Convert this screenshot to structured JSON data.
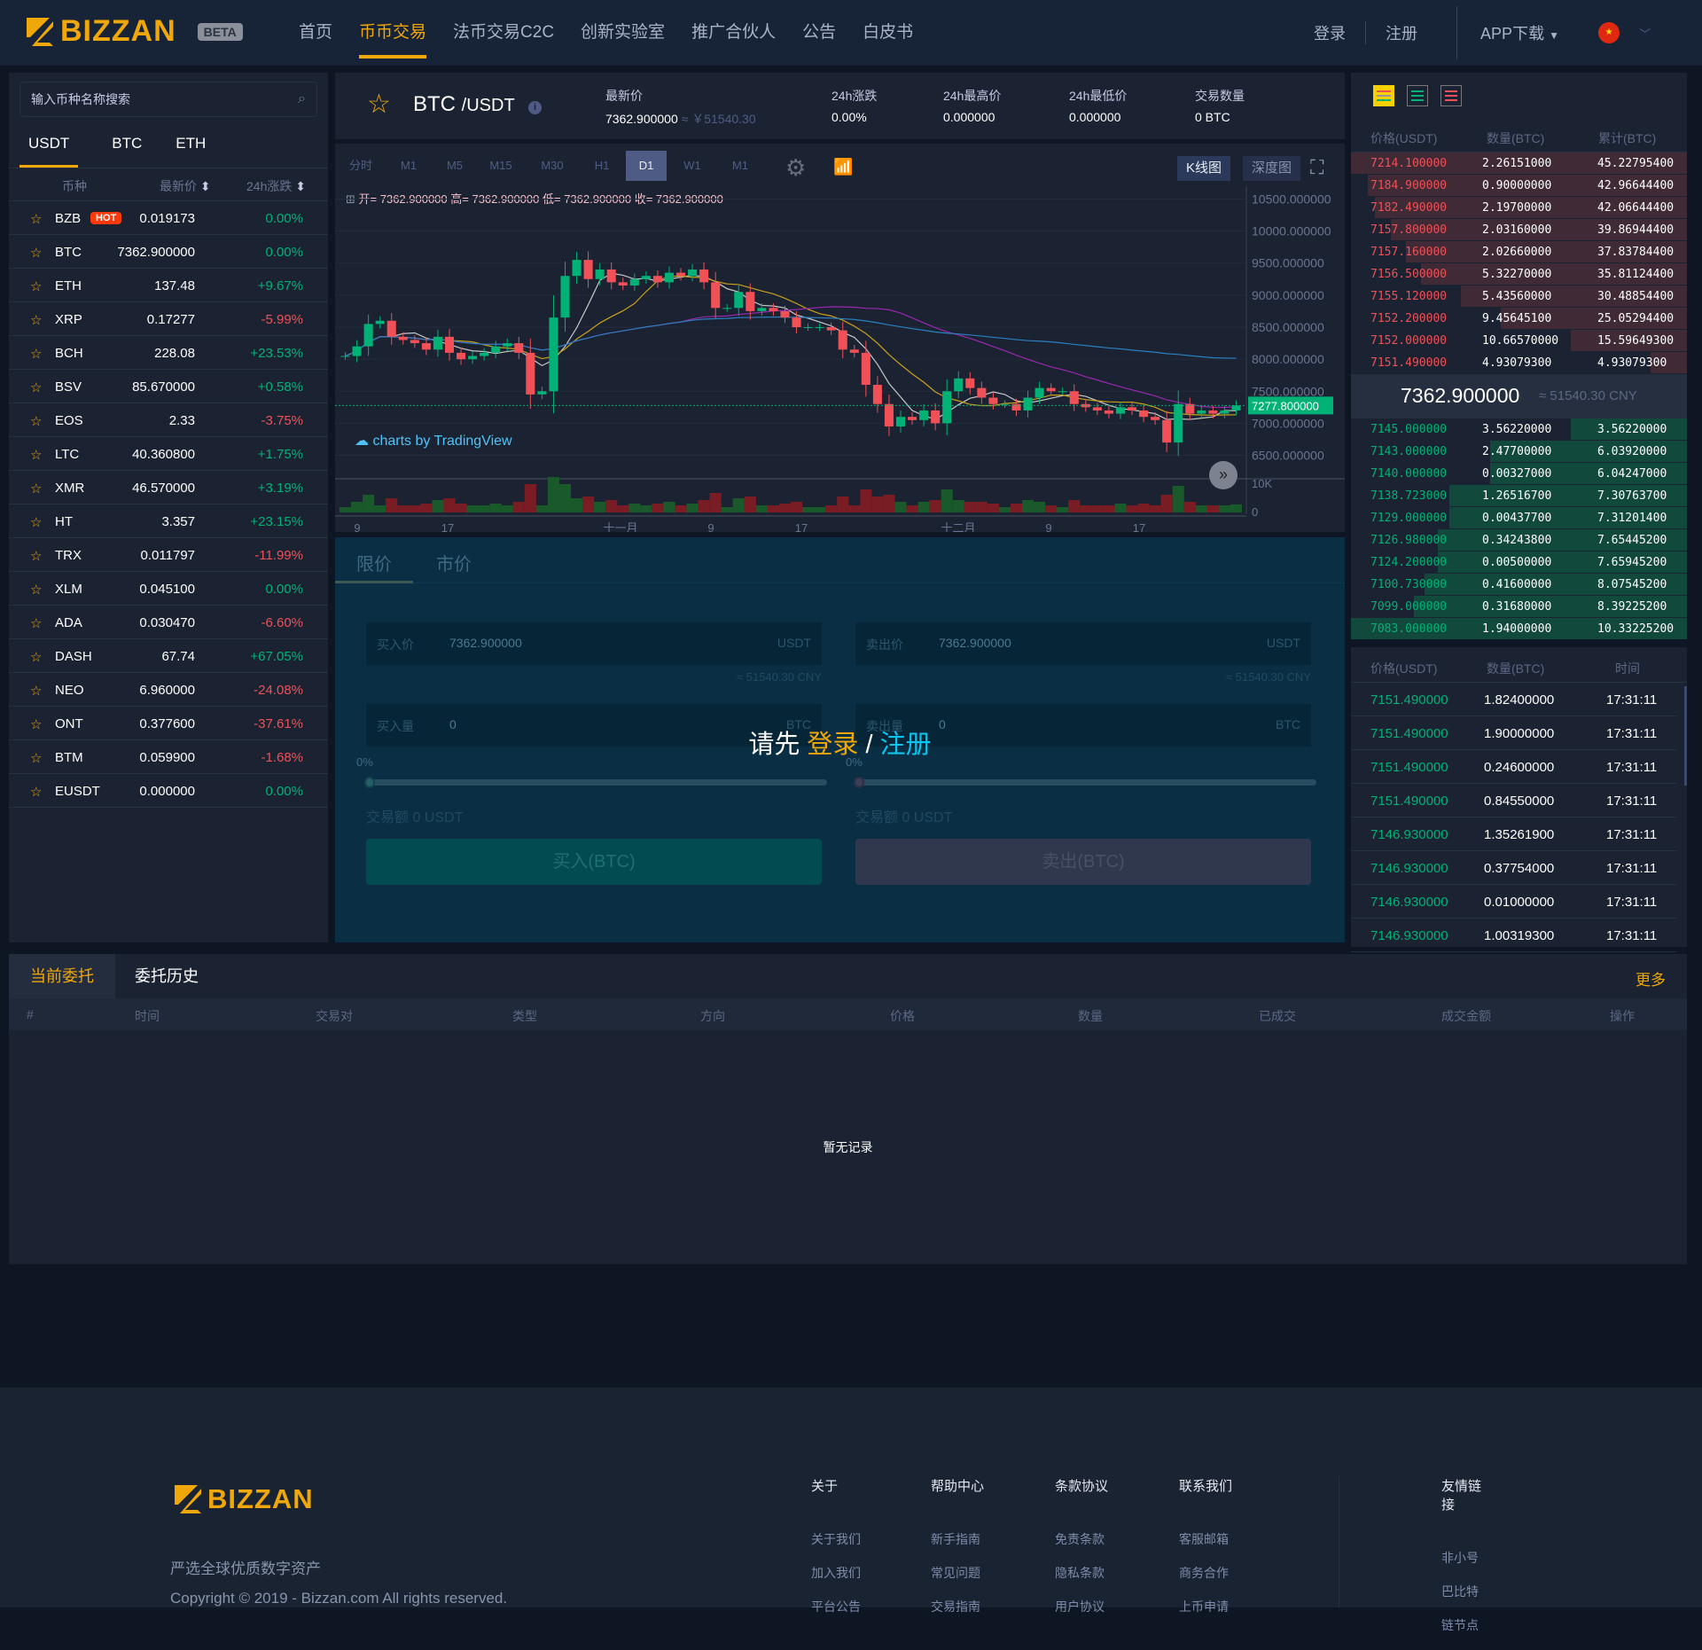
{
  "header": {
    "logo": "BIZZAN",
    "beta": "BETA",
    "nav": [
      "首页",
      "币币交易",
      "法币交易C2C",
      "创新实验室",
      "推广合伙人",
      "公告",
      "白皮书"
    ],
    "active_nav": 1,
    "login": "登录",
    "register": "注册",
    "app_download": "APP下载",
    "language_flag": "cn-flag-icon"
  },
  "market": {
    "search_placeholder": "输入币种名称搜索",
    "tabs": [
      "USDT",
      "BTC",
      "ETH"
    ],
    "cols": [
      "币种",
      "最新价",
      "24h涨跌"
    ],
    "hot": "HOT",
    "rows": [
      [
        "BZB",
        "0.019173",
        "0.00%",
        "up"
      ],
      [
        "BTC",
        "7362.900000",
        "0.00%",
        "up"
      ],
      [
        "ETH",
        "137.48",
        "+9.67%",
        "up"
      ],
      [
        "XRP",
        "0.17277",
        "-5.99%",
        "down"
      ],
      [
        "BCH",
        "228.08",
        "+23.53%",
        "up"
      ],
      [
        "BSV",
        "85.670000",
        "+0.58%",
        "up"
      ],
      [
        "EOS",
        "2.33",
        "-3.75%",
        "down"
      ],
      [
        "LTC",
        "40.360800",
        "+1.75%",
        "up"
      ],
      [
        "XMR",
        "46.570000",
        "+3.19%",
        "up"
      ],
      [
        "HT",
        "3.357",
        "+23.15%",
        "up"
      ],
      [
        "TRX",
        "0.011797",
        "-11.99%",
        "down"
      ],
      [
        "XLM",
        "0.045100",
        "0.00%",
        "up"
      ],
      [
        "ADA",
        "0.030470",
        "-6.60%",
        "down"
      ],
      [
        "DASH",
        "67.74",
        "+67.05%",
        "up"
      ],
      [
        "NEO",
        "6.960000",
        "-24.08%",
        "down"
      ],
      [
        "ONT",
        "0.377600",
        "-37.61%",
        "down"
      ],
      [
        "BTM",
        "0.059900",
        "-1.68%",
        "down"
      ],
      [
        "EUSDT",
        "0.000000",
        "0.00%",
        "up"
      ]
    ]
  },
  "ticker": {
    "symbol": "BTC",
    "quote": "/USDT",
    "latest_label": "最新价",
    "latest": "7362.900000",
    "latest_cny": "≈ ￥51540.30",
    "change_label": "24h涨跌",
    "change": "0.00%",
    "high_label": "24h最高价",
    "high": "0.000000",
    "low_label": "24h最低价",
    "low": "0.000000",
    "vol_label": "交易数量",
    "vol": "0 BTC"
  },
  "chart": {
    "timeframes": [
      "分时",
      "M1",
      "M5",
      "M15",
      "M30",
      "H1",
      "D1",
      "W1",
      "M1"
    ],
    "active_tf": 6,
    "kline": "K线图",
    "depth": "深度图",
    "ohlc": "开= 7362.900000 高= 7362.900000 低= 7362.900000 收= 7362.900000",
    "watermark": "charts by TradingView"
  },
  "chart_data": {
    "type": "candlestick",
    "yticks": [
      "10500.000000",
      "10000.000000",
      "9500.000000",
      "9000.000000",
      "8500.000000",
      "8000.000000",
      "7500.000000",
      "7000.000000",
      "6500.000000"
    ],
    "ylim": [
      6300,
      10700
    ],
    "last_price": "7277.800000",
    "vol_ticks": [
      "10K",
      "0"
    ],
    "xticks": [
      "9",
      "17",
      "十一月",
      "9",
      "17",
      "十二月",
      "9",
      "17"
    ],
    "closes": [
      8050,
      8200,
      8550,
      8600,
      8350,
      8300,
      8250,
      8150,
      8350,
      8100,
      8000,
      8050,
      8100,
      8200,
      8250,
      8100,
      7450,
      7500,
      8650,
      9300,
      9550,
      9250,
      9400,
      9200,
      9150,
      9250,
      9300,
      9200,
      9350,
      9300,
      9400,
      9200,
      8800,
      8800,
      9050,
      8750,
      8800,
      8750,
      8650,
      8500,
      8500,
      8500,
      8450,
      8150,
      8100,
      7600,
      7300,
      6950,
      7100,
      7050,
      7200,
      7000,
      7500,
      7700,
      7550,
      7400,
      7300,
      7300,
      7200,
      7400,
      7550,
      7500,
      7500,
      7300,
      7250,
      7200,
      7150,
      7250,
      7200,
      7100,
      7050,
      6700,
      7300,
      7150,
      7200,
      7150,
      7200,
      7277.8
    ]
  },
  "trade": {
    "tabs": [
      "限价",
      "市价"
    ],
    "buy_price_label": "买入价",
    "sell_price_label": "卖出价",
    "price": "7362.900000",
    "usdt": "USDT",
    "btc": "BTC",
    "cny": "≈ 51540.30 CNY",
    "buy_amount_label": "买入量",
    "sell_amount_label": "卖出量",
    "amount": "0",
    "pct": "0%",
    "total": "交易额 0 USDT",
    "buy_btn": "买入(BTC)",
    "sell_btn": "卖出(BTC)",
    "prompt": "请先",
    "login": "登录",
    "slash": "/",
    "register": "注册"
  },
  "orderbook": {
    "cols": [
      "价格(USDT)",
      "数量(BTC)",
      "累计(BTC)"
    ],
    "last": "7362.900000",
    "last_cny": "≈ 51540.30 CNY",
    "asks": [
      [
        "7214.100000",
        "2.26151000",
        "45.22795400"
      ],
      [
        "7184.900000",
        "0.90000000",
        "42.96644400"
      ],
      [
        "7182.490000",
        "2.19700000",
        "42.06644400"
      ],
      [
        "7157.800000",
        "2.03160000",
        "39.86944400"
      ],
      [
        "7157.160000",
        "2.02660000",
        "37.83784400"
      ],
      [
        "7156.500000",
        "5.32270000",
        "35.81124400"
      ],
      [
        "7155.120000",
        "5.43560000",
        "30.48854400"
      ],
      [
        "7152.200000",
        "9.45645100",
        "25.05294400"
      ],
      [
        "7152.000000",
        "10.66570000",
        "15.59649300"
      ],
      [
        "7151.490000",
        "4.93079300",
        "4.93079300"
      ]
    ],
    "bids": [
      [
        "7145.000000",
        "3.56220000",
        "3.56220000"
      ],
      [
        "7143.000000",
        "2.47700000",
        "6.03920000"
      ],
      [
        "7140.000000",
        "0.00327000",
        "6.04247000"
      ],
      [
        "7138.723000",
        "1.26516700",
        "7.30763700"
      ],
      [
        "7129.000000",
        "0.00437700",
        "7.31201400"
      ],
      [
        "7126.980000",
        "0.34243800",
        "7.65445200"
      ],
      [
        "7124.200000",
        "0.00500000",
        "7.65945200"
      ],
      [
        "7100.730000",
        "0.41600000",
        "8.07545200"
      ],
      [
        "7099.000000",
        "0.31680000",
        "8.39225200"
      ],
      [
        "7083.000000",
        "1.94000000",
        "10.33225200"
      ]
    ]
  },
  "trades": {
    "cols": [
      "价格(USDT)",
      "数量(BTC)",
      "时间"
    ],
    "rows": [
      [
        "7151.490000",
        "1.82400000",
        "17:31:11"
      ],
      [
        "7151.490000",
        "1.90000000",
        "17:31:11"
      ],
      [
        "7151.490000",
        "0.24600000",
        "17:31:11"
      ],
      [
        "7151.490000",
        "0.84550000",
        "17:31:11"
      ],
      [
        "7146.930000",
        "1.35261900",
        "17:31:11"
      ],
      [
        "7146.930000",
        "0.37754000",
        "17:31:11"
      ],
      [
        "7146.930000",
        "0.01000000",
        "17:31:11"
      ],
      [
        "7146.930000",
        "1.00319300",
        "17:31:11"
      ]
    ]
  },
  "orders": {
    "tabs": [
      "当前委托",
      "委托历史"
    ],
    "more": "更多",
    "cols": [
      "#",
      "时间",
      "交易对",
      "类型",
      "方向",
      "价格",
      "数量",
      "已成交",
      "成交金额",
      "操作"
    ],
    "empty": "暂无记录"
  },
  "footer": {
    "logo": "BIZZAN",
    "slogan": "严选全球优质数字资产",
    "copyright": "Copyright © 2019 - Bizzan.com All rights reserved.",
    "cols": [
      {
        "title": "关于",
        "links": [
          "关于我们",
          "加入我们",
          "平台公告"
        ]
      },
      {
        "title": "帮助中心",
        "links": [
          "新手指南",
          "常见问题",
          "交易指南"
        ]
      },
      {
        "title": "条款协议",
        "links": [
          "免责条款",
          "隐私条款",
          "用户协议"
        ]
      },
      {
        "title": "联系我们",
        "links": [
          "客服邮箱",
          "商务合作",
          "上币申请"
        ]
      },
      {
        "title": "友情链接",
        "links": [
          "非小号",
          "巴比特",
          "链节点"
        ]
      }
    ]
  },
  "colors": {
    "accent": "#f0a70a",
    "up": "#00b275",
    "down": "#f15057",
    "register": "#0ac5f0"
  }
}
